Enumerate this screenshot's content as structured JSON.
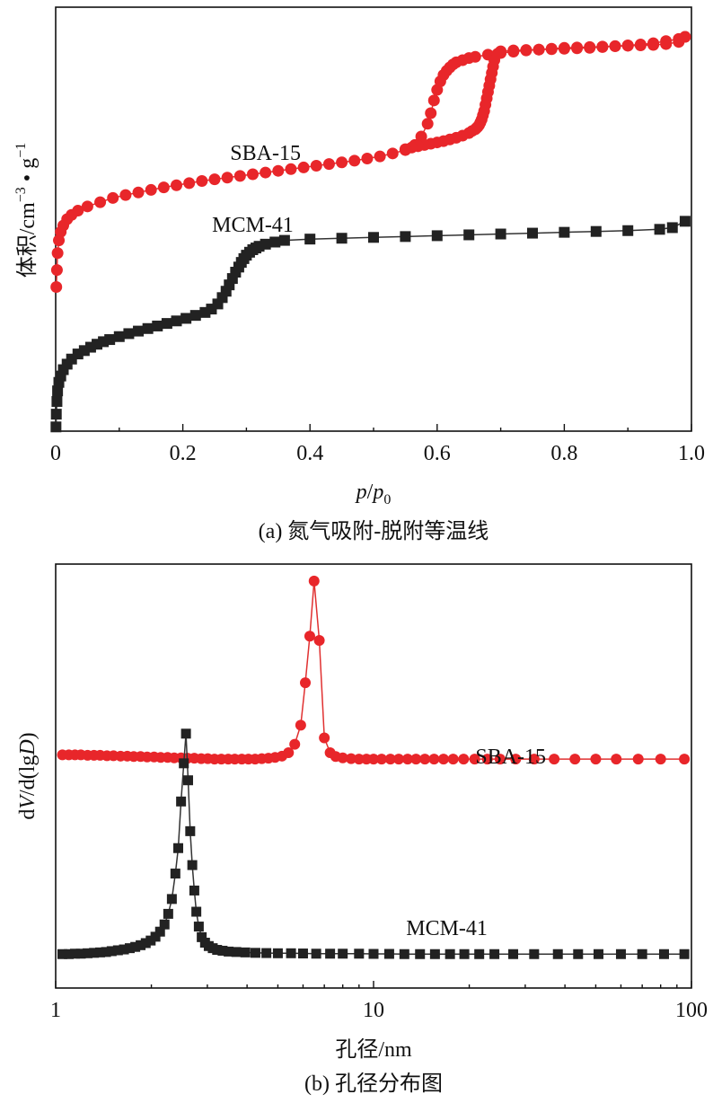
{
  "chart_data": [
    {
      "id": "a",
      "type": "line",
      "caption": "(a) 氮气吸附-脱附等温线",
      "xlabel_italic_p": "p",
      "xlabel_slash": "/",
      "xlabel_sub0": "0",
      "ylabel_main": "体积/cm",
      "ylabel_exp1": "−3",
      "ylabel_dot": " • g",
      "ylabel_exp2": "−1",
      "xlim": [
        0,
        1.0
      ],
      "ylim": [
        0,
        100
      ],
      "xticks": [
        "0",
        "0.2",
        "0.4",
        "0.6",
        "0.8",
        "1.0"
      ],
      "xtick_values": [
        0,
        0.2,
        0.4,
        0.6,
        0.8,
        1.0
      ],
      "colors": {
        "sba": "#e8262a",
        "mcm": "#222222"
      },
      "series": [
        {
          "name": "SBA-15",
          "label_text": "SBA-15",
          "label_at": [
            0.33,
            64
          ],
          "marker": "circle",
          "color": "#e8262a",
          "adsorption": {
            "x": [
              0.001,
              0.002,
              0.003,
              0.005,
              0.008,
              0.012,
              0.018,
              0.025,
              0.035,
              0.05,
              0.07,
              0.09,
              0.11,
              0.13,
              0.15,
              0.17,
              0.19,
              0.21,
              0.23,
              0.25,
              0.27,
              0.29,
              0.31,
              0.33,
              0.35,
              0.37,
              0.39,
              0.41,
              0.43,
              0.45,
              0.47,
              0.49,
              0.51,
              0.53,
              0.55,
              0.565,
              0.575,
              0.585,
              0.59,
              0.595,
              0.6,
              0.605,
              0.61,
              0.615,
              0.62,
              0.625,
              0.63,
              0.64,
              0.65,
              0.66,
              0.68,
              0.7,
              0.72,
              0.74,
              0.76,
              0.78,
              0.8,
              0.82,
              0.84,
              0.86,
              0.88,
              0.9,
              0.92,
              0.94,
              0.96,
              0.98,
              0.99
            ],
            "y": [
              34,
              38,
              42,
              45,
              47,
              48.5,
              50,
              51,
              52,
              53,
              54,
              55,
              55.7,
              56.3,
              56.9,
              57.5,
              58,
              58.5,
              59,
              59.4,
              59.8,
              60.2,
              60.6,
              61,
              61.4,
              61.8,
              62.2,
              62.6,
              63,
              63.4,
              63.8,
              64.3,
              64.8,
              65.5,
              66.3,
              67.5,
              69.5,
              72.5,
              75,
              78,
              80.5,
              82.5,
              84,
              85,
              85.8,
              86.5,
              87,
              87.5,
              88,
              88.3,
              88.8,
              89.2,
              89.5,
              89.8,
              90,
              90.2,
              90.4,
              90.5,
              90.6,
              90.7,
              90.8,
              90.9,
              91,
              91.1,
              91.3,
              91.8,
              93
            ]
          },
          "desorption": {
            "x": [
              0.99,
              0.98,
              0.96,
              0.94,
              0.92,
              0.9,
              0.88,
              0.86,
              0.84,
              0.82,
              0.8,
              0.78,
              0.76,
              0.74,
              0.72,
              0.7,
              0.695,
              0.69,
              0.688,
              0.686,
              0.684,
              0.682,
              0.68,
              0.678,
              0.676,
              0.674,
              0.672,
              0.67,
              0.668,
              0.666,
              0.664,
              0.662,
              0.66,
              0.655,
              0.65,
              0.64,
              0.63,
              0.62,
              0.61,
              0.6,
              0.59,
              0.58,
              0.57,
              0.56,
              0.55
            ],
            "y": [
              93,
              92.5,
              92,
              91.5,
              91.2,
              91,
              90.8,
              90.6,
              90.4,
              90.3,
              90.2,
              90.1,
              90,
              89.9,
              89.8,
              89.6,
              89,
              87.5,
              86,
              84.5,
              83,
              81.5,
              80,
              78.5,
              77,
              75.5,
              74.5,
              73.5,
              72.8,
              72.2,
              71.8,
              71.5,
              71.2,
              70.8,
              70.3,
              69.7,
              69.2,
              68.8,
              68.4,
              68.1,
              67.8,
              67.5,
              67.2,
              66.9,
              66.5
            ]
          }
        },
        {
          "name": "MCM-41",
          "label_text": "MCM-41",
          "label_at": [
            0.31,
            47
          ],
          "marker": "square",
          "color": "#222222",
          "adsorption": {
            "x": [
              0.0005,
              0.001,
              0.002,
              0.003,
              0.005,
              0.008,
              0.012,
              0.018,
              0.025,
              0.035,
              0.045,
              0.055,
              0.065,
              0.075,
              0.085,
              0.1,
              0.115,
              0.13,
              0.145,
              0.16,
              0.175,
              0.19,
              0.205,
              0.22,
              0.235,
              0.245,
              0.255,
              0.262,
              0.268,
              0.273,
              0.278,
              0.283,
              0.288,
              0.292,
              0.296,
              0.3,
              0.305,
              0.31,
              0.315,
              0.32,
              0.33,
              0.345,
              0.36,
              0.4,
              0.45,
              0.5,
              0.55,
              0.6,
              0.65,
              0.7,
              0.75,
              0.8,
              0.85,
              0.9,
              0.95,
              0.97,
              0.99
            ],
            "y": [
              1,
              4,
              7,
              9.5,
              11.5,
              13,
              14.5,
              15.8,
              17,
              18.2,
              19,
              19.8,
              20.5,
              21.1,
              21.6,
              22.3,
              23,
              23.6,
              24.2,
              24.8,
              25.4,
              26,
              26.6,
              27.3,
              28,
              28.8,
              30,
              31.5,
              33,
              34.5,
              36,
              37.5,
              38.7,
              39.8,
              40.7,
              41.5,
              42.2,
              42.8,
              43.2,
              43.6,
              44.1,
              44.6,
              45,
              45.3,
              45.5,
              45.7,
              45.9,
              46.1,
              46.3,
              46.5,
              46.7,
              46.9,
              47.1,
              47.3,
              47.6,
              48,
              49.5
            ]
          }
        }
      ]
    },
    {
      "id": "b",
      "type": "line",
      "caption": "(b) 孔径分布图",
      "xlabel": "孔径/nm",
      "ylabel_pre": "d",
      "ylabel_V": "V",
      "ylabel_mid": "/d(lg",
      "ylabel_D": "D",
      "ylabel_post": ")",
      "xscale": "log",
      "xlim": [
        1,
        100
      ],
      "ylim": [
        0,
        100
      ],
      "xticks": [
        "1",
        "10",
        "100"
      ],
      "xtick_values": [
        1,
        10,
        100
      ],
      "series": [
        {
          "name": "SBA-15",
          "label_text": "SBA-15",
          "label_at": [
            27,
            53
          ],
          "marker": "circle",
          "color": "#e8262a",
          "x": [
            1.05,
            1.1,
            1.15,
            1.2,
            1.26,
            1.32,
            1.38,
            1.45,
            1.52,
            1.6,
            1.68,
            1.76,
            1.85,
            1.94,
            2.04,
            2.14,
            2.25,
            2.36,
            2.48,
            2.6,
            2.73,
            2.87,
            3.01,
            3.16,
            3.32,
            3.49,
            3.66,
            3.85,
            4.04,
            4.24,
            4.45,
            4.67,
            4.9,
            5.15,
            5.4,
            5.65,
            5.9,
            6.1,
            6.3,
            6.5,
            6.75,
            7.0,
            7.3,
            7.6,
            8.0,
            8.5,
            9.0,
            9.5,
            10.0,
            10.6,
            11.3,
            12.0,
            12.8,
            13.6,
            14.5,
            15.5,
            16.6,
            17.8,
            19.2,
            20.8,
            22.8,
            25.0,
            28.0,
            32.0,
            37.0,
            43.0,
            50.0,
            58.0,
            68.0,
            80.0,
            95.0
          ],
          "y": [
            55.0,
            55.0,
            55.0,
            55.0,
            54.9,
            54.9,
            54.9,
            54.8,
            54.8,
            54.7,
            54.7,
            54.6,
            54.6,
            54.5,
            54.5,
            54.4,
            54.4,
            54.3,
            54.3,
            54.2,
            54.2,
            54.1,
            54.1,
            54.0,
            54.0,
            54.0,
            54.0,
            54.0,
            54.0,
            54.0,
            54.1,
            54.2,
            54.4,
            54.7,
            55.5,
            57.5,
            62,
            72,
            83,
            96,
            82,
            59,
            55.5,
            54.6,
            54.3,
            54.1,
            54.0,
            54.0,
            54.0,
            54.0,
            54.0,
            54.0,
            54.0,
            54.0,
            54.0,
            54.0,
            54.0,
            54.0,
            54.0,
            54.0,
            54.0,
            54.0,
            54.0,
            54.0,
            54.0,
            54.0,
            54.0,
            54.0,
            54.0,
            54.0,
            54.0
          ]
        },
        {
          "name": "MCM-41",
          "label_text": "MCM-41",
          "label_at": [
            17,
            12.5
          ],
          "marker": "square",
          "color": "#222222",
          "x": [
            1.05,
            1.1,
            1.15,
            1.2,
            1.26,
            1.32,
            1.38,
            1.44,
            1.5,
            1.57,
            1.64,
            1.71,
            1.78,
            1.85,
            1.92,
            1.99,
            2.06,
            2.13,
            2.2,
            2.26,
            2.32,
            2.38,
            2.43,
            2.48,
            2.53,
            2.57,
            2.61,
            2.65,
            2.69,
            2.73,
            2.77,
            2.82,
            2.88,
            2.95,
            3.03,
            3.12,
            3.22,
            3.35,
            3.5,
            3.7,
            3.95,
            4.25,
            4.6,
            5.0,
            5.5,
            6.0,
            6.6,
            7.3,
            8.0,
            9.0,
            10.0,
            11.2,
            12.5,
            14.0,
            15.6,
            17.4,
            19.3,
            21.5,
            24.0,
            27.5,
            32.0,
            38.0,
            44.0,
            51.0,
            60.0,
            70.0,
            82.0,
            95.0
          ],
          "y": [
            8.0,
            8.0,
            8.1,
            8.1,
            8.2,
            8.3,
            8.4,
            8.5,
            8.7,
            8.9,
            9.1,
            9.4,
            9.7,
            10.1,
            10.6,
            11.2,
            12.1,
            13.3,
            15.0,
            17.5,
            21,
            27,
            33,
            44,
            53,
            60,
            49,
            37,
            29,
            23,
            18,
            14.5,
            12,
            10.7,
            9.9,
            9.4,
            9.0,
            8.8,
            8.6,
            8.5,
            8.4,
            8.3,
            8.25,
            8.2,
            8.2,
            8.15,
            8.1,
            8.1,
            8.1,
            8.1,
            8.05,
            8.05,
            8.0,
            8.0,
            8.0,
            8.0,
            8.0,
            8.0,
            8.0,
            8.0,
            8.0,
            8.0,
            8.0,
            8.0,
            8.0,
            8.0,
            8.0,
            8.0
          ]
        }
      ]
    }
  ]
}
